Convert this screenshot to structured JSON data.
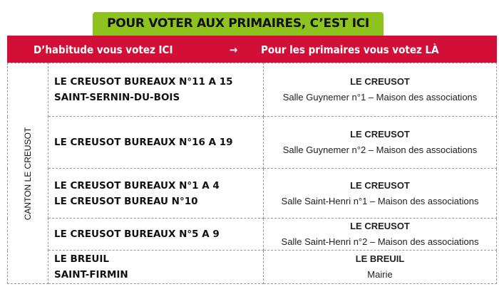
{
  "banner": "POUR VOTER AUX PRIMAIRES, C’EST ICI",
  "header": {
    "left": "D’habitude vous votez ICI",
    "arrow": "→",
    "right": "Pour les primaires vous votez LÀ"
  },
  "canton": "CANTON LE CREUSOT",
  "rows": [
    {
      "from": [
        "LE CREUSOT BUREAUX N°11 A 15",
        "SAINT-SERNIN-DU-BOIS"
      ],
      "city": "LE CREUSOT",
      "place": "Salle Guynemer n°1 – Maison des associations"
    },
    {
      "from": [
        "LE CREUSOT BUREAUX N°16 A 19",
        ""
      ],
      "city": "LE CREUSOT",
      "place": "Salle Guynemer n°2 – Maison des associations"
    },
    {
      "from": [
        "LE CREUSOT BUREAUX N°1 A 4",
        "LE CREUSOT BUREAU N°10"
      ],
      "city": "LE CREUSOT",
      "place": "Salle Saint-Henri n°1 – Maison des associations"
    },
    {
      "from": [
        "LE CREUSOT BUREAUX N°5 A 9",
        ""
      ],
      "city": "LE CREUSOT",
      "place": "Salle Saint-Henri n°2 – Maison des associations"
    },
    {
      "from": [
        "LE BREUIL",
        "SAINT-FIRMIN"
      ],
      "city": "LE BREUIL",
      "place": "Mairie"
    }
  ],
  "colors": {
    "banner": "#8dc21f",
    "header": "#d20f37"
  }
}
